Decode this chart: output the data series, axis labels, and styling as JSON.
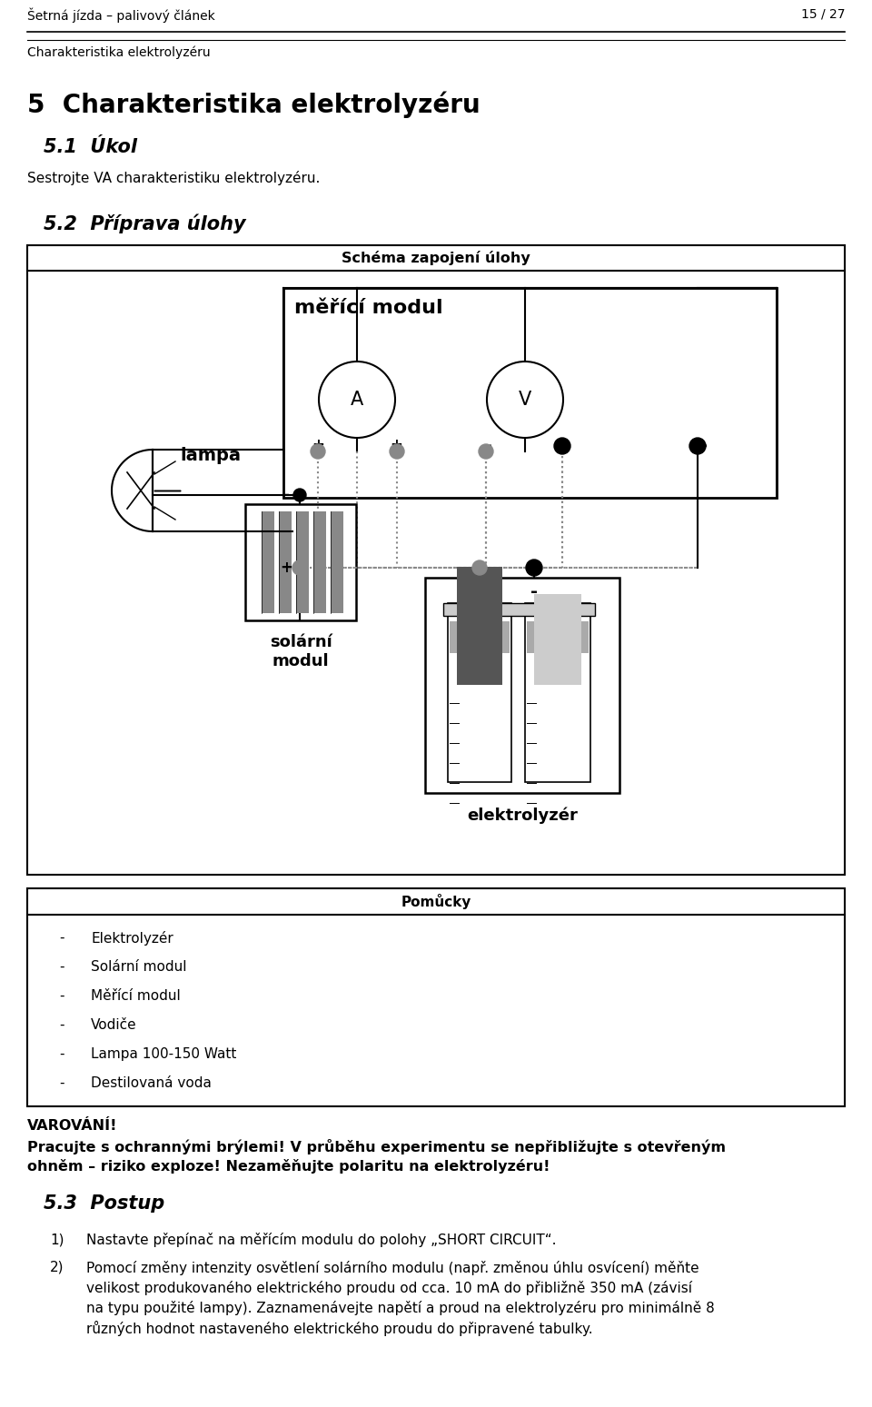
{
  "header_left": "Šetrná jízda – palivový článek",
  "header_right": "15 / 27",
  "header_sub": "Charakteristika elektrolyzéru",
  "section_title": "5  Charakteristika elektrolyzéru",
  "subsection1": "5.1  Úkol",
  "subsection1_text": "Sestrojte VA charakteristiku elektrolyzéru.",
  "subsection2": "5.2  Příprava úlohy",
  "schema_title": "Schéma zapojení úlohy",
  "pomucky_title": "Pomůcky",
  "pomucky_items": [
    "Elektrolyzér",
    "Solární modul",
    "Měřící modul",
    "Vodiče",
    "Lampa 100-150 Watt",
    "Destilovaná voda"
  ],
  "warning_title": "VAROVÁNÍ!",
  "warning_line1": "Pracujte s ochrannými brýlemi! V průběhu experimentu se nepřibližujte s otevřeným",
  "warning_line2": "ohněm – riziko exploze! Nezaměňujte polaritu na elektrolyzéru!",
  "subsection3": "5.3  Postup",
  "postup_item1": "Nastavte přepínač na měřícím modulu do polohy „SHORT CIRCUIT“.",
  "postup_item2a": "Pomocí změny intenzity osvětlení solárního modulu (např. změnou úhlu osvícení) měňte",
  "postup_item2b": "velikost produkovaného elektrického proudu od cca. 10 mA do přibližně 350 mA (závisí",
  "postup_item2c": "na typu použité lampy). Zaznamenávejte napětí a proud na elektrolyzéru pro minimálně 8",
  "postup_item2d": "různých hodnot nastaveného elektrického proudu do připravené tabulky.",
  "bg_color": "#ffffff",
  "text_color": "#000000"
}
